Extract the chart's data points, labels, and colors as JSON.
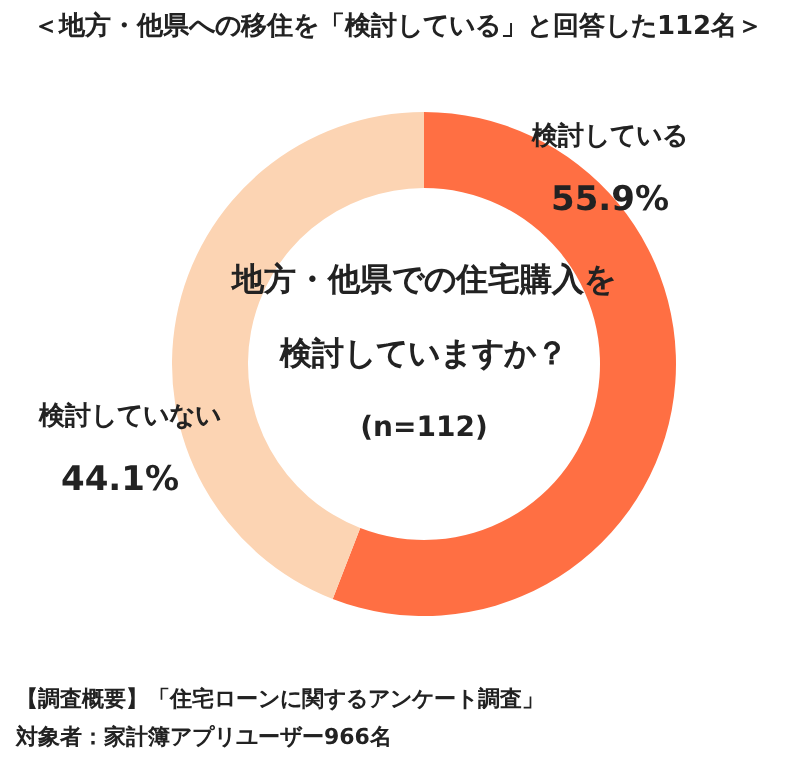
{
  "chart_data": {
    "type": "donut",
    "title": "＜地方・他県への移住を「検討している」と回答した112名＞",
    "categories": [
      "検討している",
      "検討していない"
    ],
    "values": [
      55.9,
      44.1
    ],
    "colors": [
      "#ff6f43",
      "#fcd4b3"
    ],
    "value_labels": [
      "55.9%",
      "44.1%"
    ],
    "annotations": [
      "地方・他県での住宅購入を",
      "検討していますか？",
      "(n=112)",
      "【調査概要】「住宅ローンに関するアンケート調査」",
      "対象者：家計簿アプリユーザー966名"
    ]
  }
}
